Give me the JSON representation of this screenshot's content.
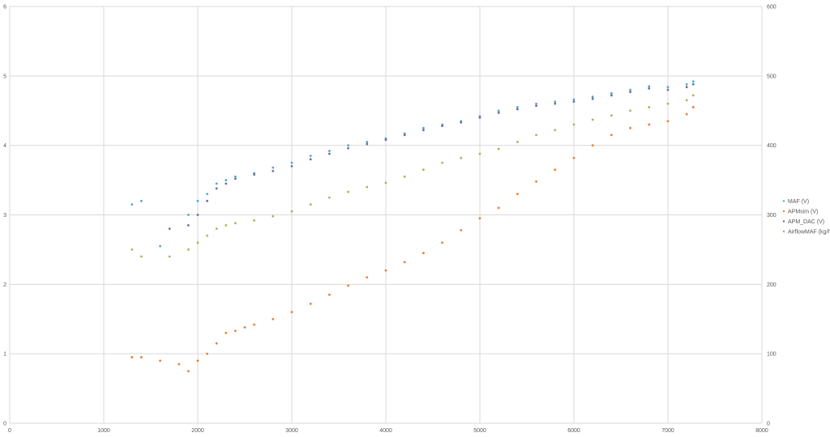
{
  "chart_data": {
    "type": "scatter",
    "title": "",
    "xlabel": "",
    "ylabel": "",
    "y2label": "",
    "grid": true,
    "legend_position": "right",
    "xlim": [
      0,
      8000
    ],
    "ylim": [
      0,
      6
    ],
    "y2lim": [
      0,
      600
    ],
    "x_ticks": [
      "0",
      "1000",
      "2000",
      "3000",
      "4000",
      "5000",
      "6000",
      "7000",
      "8000"
    ],
    "y_ticks": [
      "0",
      "1",
      "2",
      "3",
      "4",
      "5",
      "6"
    ],
    "y2_ticks": [
      "0",
      "100",
      "200",
      "300",
      "400",
      "500",
      "600"
    ],
    "series": [
      {
        "name": "MAF (V)",
        "axis": "left",
        "color": "#4BACC6",
        "x": [
          1300,
          1400,
          1600,
          1900,
          2000,
          2100,
          2200,
          2300,
          2400,
          2600,
          2800,
          3000,
          3200,
          3400,
          3600,
          3800,
          4000,
          4200,
          4400,
          4600,
          4800,
          5000,
          5200,
          5400,
          5600,
          5800,
          6000,
          6200,
          6400,
          6600,
          6800,
          7000,
          7200,
          7270
        ],
        "y": [
          3.15,
          3.2,
          2.55,
          3.0,
          3.2,
          3.3,
          3.45,
          3.5,
          3.55,
          3.6,
          3.68,
          3.75,
          3.85,
          3.92,
          4.0,
          4.05,
          4.1,
          4.17,
          4.25,
          4.3,
          4.35,
          4.42,
          4.5,
          4.55,
          4.6,
          4.63,
          4.66,
          4.7,
          4.75,
          4.8,
          4.85,
          4.84,
          4.88,
          4.92
        ]
      },
      {
        "name": "APMsim (V)",
        "axis": "left",
        "color": "#ED7D31",
        "x": [
          1300,
          1400,
          1600,
          1800,
          1900,
          2000,
          2100,
          2200,
          2300,
          2400,
          2500,
          2600,
          2800,
          3000,
          3200,
          3400,
          3600,
          3800,
          4000,
          4200,
          4400,
          4600,
          4800,
          5000,
          5200,
          5400,
          5600,
          5800,
          6000,
          6200,
          6400,
          6600,
          6800,
          7000,
          7200,
          7270
        ],
        "y": [
          0.95,
          0.95,
          0.9,
          0.85,
          0.75,
          0.9,
          1.0,
          1.15,
          1.3,
          1.33,
          1.38,
          1.42,
          1.5,
          1.6,
          1.72,
          1.85,
          1.98,
          2.1,
          2.2,
          2.32,
          2.45,
          2.6,
          2.78,
          2.95,
          3.1,
          3.3,
          3.48,
          3.65,
          3.82,
          4.0,
          4.15,
          4.25,
          4.3,
          4.35,
          4.45,
          4.55
        ]
      },
      {
        "name": "APM_DAC (V)",
        "axis": "left",
        "color": "#8064A2",
        "x": [
          1700,
          1900,
          2000,
          2100,
          2200,
          2300,
          2400,
          2600,
          2800,
          3000,
          3200,
          3400,
          3600,
          3800,
          4000,
          4200,
          4400,
          4600,
          4800,
          5000,
          5200,
          5400,
          5600,
          5800,
          6000,
          6200,
          6400,
          6600,
          6800,
          7000,
          7200,
          7270
        ],
        "y": [
          2.8,
          2.85,
          3.0,
          3.2,
          3.38,
          3.45,
          3.52,
          3.58,
          3.63,
          3.7,
          3.8,
          3.88,
          3.96,
          4.02,
          4.08,
          4.15,
          4.22,
          4.28,
          4.33,
          4.4,
          4.47,
          4.52,
          4.57,
          4.6,
          4.63,
          4.67,
          4.72,
          4.77,
          4.82,
          4.8,
          4.84,
          4.88
        ]
      },
      {
        "name": "AirflowMAF (kg/h)",
        "axis": "right",
        "color": "#9BBB59",
        "x": [
          1300,
          1400,
          1700,
          1900,
          2000,
          2100,
          2200,
          2300,
          2400,
          2600,
          2800,
          3000,
          3200,
          3400,
          3600,
          3800,
          4000,
          4200,
          4400,
          4600,
          4800,
          5000,
          5200,
          5400,
          5600,
          5800,
          6000,
          6200,
          6400,
          6600,
          6800,
          7000,
          7200,
          7270
        ],
        "y": [
          250,
          240,
          240,
          250,
          260,
          270,
          280,
          285,
          288,
          292,
          298,
          305,
          315,
          325,
          333,
          340,
          346,
          355,
          365,
          375,
          382,
          388,
          395,
          405,
          415,
          422,
          430,
          437,
          443,
          450,
          455,
          460,
          465,
          472
        ]
      }
    ]
  }
}
